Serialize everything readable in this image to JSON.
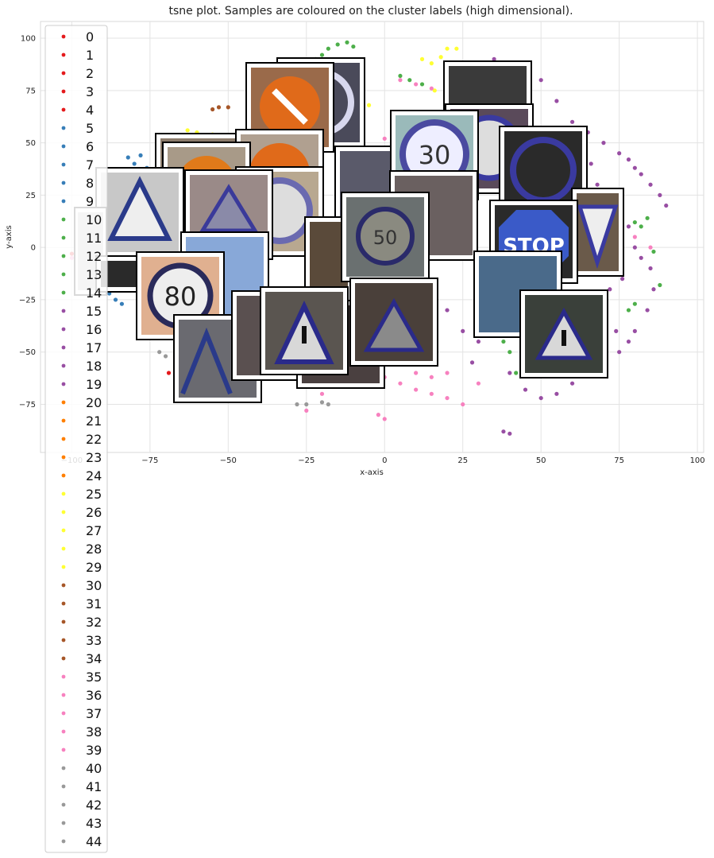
{
  "chart_data": {
    "type": "scatter",
    "title": "tsne plot. Samples are coloured on the cluster labels (high dimensional).",
    "xlabel": "x-axis",
    "ylabel": "y-axis",
    "xlim": [
      -110,
      102
    ],
    "ylim": [
      -98,
      108
    ],
    "xticks": [
      -100,
      -75,
      -50,
      -25,
      0,
      25,
      50,
      75,
      100
    ],
    "yticks": [
      -75,
      -50,
      -25,
      0,
      25,
      50,
      75,
      100
    ],
    "grid": true,
    "legend": {
      "placement": "left",
      "labels": [
        "0",
        "1",
        "2",
        "3",
        "4",
        "5",
        "6",
        "7",
        "8",
        "9",
        "10",
        "11",
        "12",
        "13",
        "14",
        "15",
        "16",
        "17",
        "18",
        "19",
        "20",
        "21",
        "22",
        "23",
        "24",
        "25",
        "26",
        "27",
        "28",
        "29",
        "30",
        "31",
        "32",
        "33",
        "34",
        "35",
        "36",
        "37",
        "38",
        "39",
        "40",
        "41",
        "42",
        "43",
        "44"
      ]
    },
    "series": [
      {
        "labels": "0-4",
        "color": "#e41a1c",
        "points": [
          [
            -100,
            -3
          ],
          [
            -98,
            -2
          ],
          [
            -69,
            -60
          ],
          [
            -55,
            -58
          ],
          [
            -40,
            -55
          ]
        ]
      },
      {
        "labels": "5-9",
        "color": "#377eb8",
        "points": [
          [
            -82,
            43
          ],
          [
            -80,
            40
          ],
          [
            -78,
            44
          ],
          [
            -76,
            38
          ],
          [
            -84,
            36
          ],
          [
            -86,
            -25
          ],
          [
            -88,
            -22
          ],
          [
            -84,
            -27
          ],
          [
            -80,
            -20
          ],
          [
            -78,
            -24
          ]
        ]
      },
      {
        "labels": "10-14",
        "color": "#4daf4a",
        "points": [
          [
            -25,
            88
          ],
          [
            -22,
            90
          ],
          [
            -20,
            92
          ],
          [
            -18,
            95
          ],
          [
            -15,
            97
          ],
          [
            -12,
            98
          ],
          [
            -10,
            96
          ],
          [
            5,
            82
          ],
          [
            8,
            80
          ],
          [
            12,
            78
          ],
          [
            80,
            12
          ],
          [
            82,
            10
          ],
          [
            84,
            14
          ],
          [
            86,
            -2
          ],
          [
            88,
            -18
          ],
          [
            80,
            -27
          ],
          [
            78,
            -30
          ],
          [
            36,
            -30
          ],
          [
            35,
            -40
          ],
          [
            38,
            -45
          ],
          [
            40,
            -50
          ],
          [
            42,
            -60
          ]
        ]
      },
      {
        "labels": "15-19",
        "color": "#984ea3",
        "points": [
          [
            35,
            90
          ],
          [
            40,
            88
          ],
          [
            45,
            85
          ],
          [
            50,
            80
          ],
          [
            55,
            70
          ],
          [
            60,
            60
          ],
          [
            65,
            55
          ],
          [
            70,
            50
          ],
          [
            75,
            45
          ],
          [
            78,
            42
          ],
          [
            80,
            38
          ],
          [
            82,
            35
          ],
          [
            85,
            30
          ],
          [
            88,
            25
          ],
          [
            90,
            20
          ],
          [
            75,
            15
          ],
          [
            78,
            10
          ],
          [
            80,
            0
          ],
          [
            82,
            -5
          ],
          [
            85,
            -10
          ],
          [
            86,
            -20
          ],
          [
            84,
            -30
          ],
          [
            80,
            -40
          ],
          [
            78,
            -45
          ],
          [
            75,
            -50
          ],
          [
            70,
            -55
          ],
          [
            65,
            -60
          ],
          [
            60,
            -65
          ],
          [
            55,
            -70
          ],
          [
            50,
            -72
          ],
          [
            45,
            -68
          ],
          [
            40,
            -60
          ],
          [
            38,
            -88
          ],
          [
            40,
            -89
          ],
          [
            30,
            -45
          ],
          [
            28,
            -55
          ],
          [
            25,
            -40
          ],
          [
            20,
            -30
          ],
          [
            15,
            -20
          ],
          [
            62,
            35
          ],
          [
            68,
            30
          ],
          [
            72,
            25
          ],
          [
            74,
            20
          ],
          [
            58,
            45
          ],
          [
            66,
            40
          ],
          [
            70,
            -35
          ],
          [
            74,
            -40
          ],
          [
            68,
            -45
          ],
          [
            72,
            -20
          ],
          [
            76,
            -15
          ],
          [
            60,
            -50
          ]
        ]
      },
      {
        "labels": "20-24",
        "color": "#ff7f00",
        "points": [
          [
            -30,
            38
          ],
          [
            -28,
            40
          ],
          [
            -35,
            30
          ],
          [
            -32,
            25
          ],
          [
            -30,
            20
          ],
          [
            -28,
            15
          ],
          [
            -25,
            35
          ]
        ]
      },
      {
        "labels": "25-29",
        "color": "#ffff33",
        "points": [
          [
            12,
            90
          ],
          [
            15,
            88
          ],
          [
            18,
            91
          ],
          [
            20,
            95
          ],
          [
            23,
            95
          ],
          [
            -63,
            56
          ],
          [
            -60,
            55
          ],
          [
            -55,
            54
          ],
          [
            16,
            75
          ],
          [
            -5,
            68
          ]
        ]
      },
      {
        "labels": "30-34",
        "color": "#a65628",
        "points": [
          [
            -55,
            66
          ],
          [
            -53,
            67
          ],
          [
            -50,
            67
          ],
          [
            -60,
            10
          ],
          [
            -62,
            12
          ]
        ]
      },
      {
        "labels": "35-39",
        "color": "#f781bf",
        "points": [
          [
            5,
            80
          ],
          [
            10,
            78
          ],
          [
            15,
            76
          ],
          [
            20,
            75
          ],
          [
            25,
            72
          ],
          [
            30,
            70
          ],
          [
            0,
            52
          ],
          [
            5,
            50
          ],
          [
            -5,
            -60
          ],
          [
            0,
            -62
          ],
          [
            5,
            -65
          ],
          [
            10,
            -68
          ],
          [
            15,
            -70
          ],
          [
            20,
            -72
          ],
          [
            25,
            -75
          ],
          [
            -2,
            -80
          ],
          [
            0,
            -82
          ],
          [
            -10,
            -55
          ],
          [
            -5,
            -50
          ],
          [
            10,
            -60
          ],
          [
            15,
            -62
          ],
          [
            -20,
            -70
          ],
          [
            -25,
            -78
          ],
          [
            30,
            -65
          ],
          [
            20,
            -60
          ],
          [
            60,
            15
          ],
          [
            70,
            10
          ],
          [
            80,
            5
          ],
          [
            85,
            0
          ],
          [
            -100,
            -5
          ],
          [
            -97,
            -5
          ]
        ]
      },
      {
        "labels": "40-44",
        "color": "#999999",
        "points": [
          [
            -70,
            -52
          ],
          [
            -72,
            -50
          ],
          [
            -28,
            -75
          ],
          [
            -25,
            -75
          ],
          [
            -20,
            -74
          ],
          [
            -18,
            -75
          ],
          [
            -35,
            -60
          ]
        ]
      }
    ]
  }
}
